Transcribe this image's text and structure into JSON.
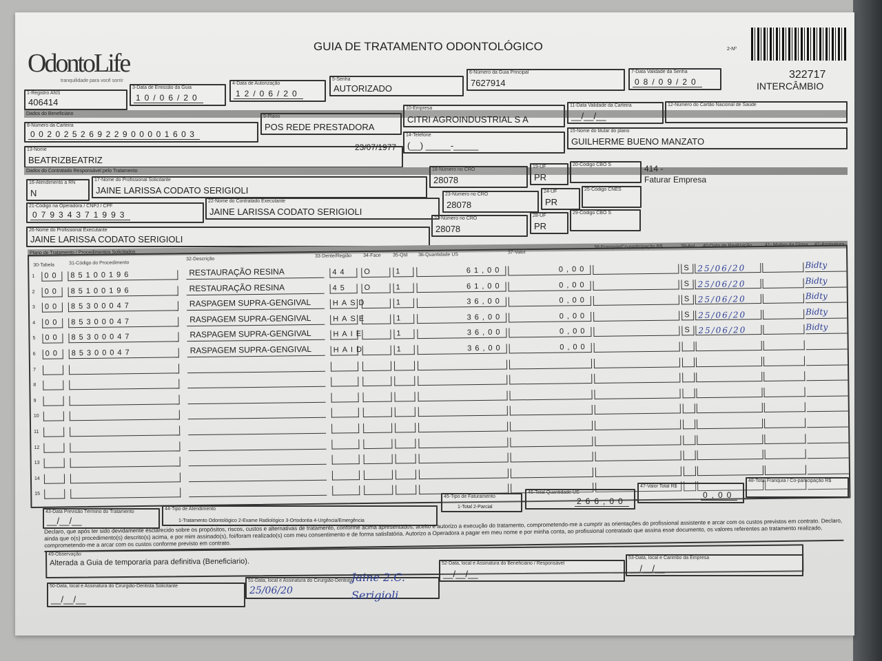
{
  "header": {
    "logo": "OdontoLife",
    "logo_tagline": "tranquilidade para você sorrir",
    "title": "GUIA DE TRATAMENTO ODONTOLÓGICO",
    "guide_number_label": "2-Nº",
    "stamp_number": "322717",
    "stamp_text": "INTERCÂMBIO"
  },
  "fields": {
    "registro_ans": {
      "label": "1-Registro ANS",
      "value": "406414"
    },
    "data_emissao": {
      "label": "3-Data de Emissão da Guia",
      "value": "10/06/20"
    },
    "data_autorizacao": {
      "label": "4-Data de Autorização",
      "value": "12/06/20"
    },
    "senha": {
      "label": "5-Senha",
      "value": "AUTORIZADO"
    },
    "guia_principal": {
      "label": "6-Número da Guia Principal",
      "value": "7627914"
    },
    "validade_senha": {
      "label": "7-Data Validade da Senha",
      "value": "08/09/20"
    },
    "band_beneficiario": "Dados do Beneficiário",
    "carteira": {
      "label": "8-Número da Carteira",
      "value": "00202526922900001603"
    },
    "plano": {
      "label": "9-Plano",
      "value": "POS REDE PRESTADORA"
    },
    "empresa": {
      "label": "10-Empresa",
      "value": "CITRI AGROINDUSTRIAL S A"
    },
    "validade_carteira": {
      "label": "11-Data Validade da Carteira",
      "value": "__/__/__"
    },
    "cns": {
      "label": "12-Número do Cartão Nacional de Saúde",
      "value": ""
    },
    "nome": {
      "label": "13-Nome",
      "value": "BEATRIZBEATRIZ"
    },
    "nascimento": "23/07/1977",
    "telefone": {
      "label": "14-Telefone",
      "value": "(__) _____-_____"
    },
    "titular": {
      "label": "15-Nome do titular do plano",
      "value": "GUILHERME BUENO MANZATO"
    },
    "band_contratado": "Dados do Contratado Responsável pelo Tratamento",
    "atendimento_rn": {
      "label": "16-Atendimento a RN",
      "value": "N"
    },
    "prof_solicitante": {
      "label": "17-Nome do Profissional Solicitante",
      "value": "JAINE LARISSA CODATO SERIGIOLI"
    },
    "cro_18": {
      "label": "18-Número no CRO",
      "value": "28078"
    },
    "uf_19": {
      "label": "19-UF",
      "value": "PR"
    },
    "cbo_20": {
      "label": "20-Código CBO S",
      "value": ""
    },
    "note_414": "414 -",
    "note_faturar": "Faturar Empresa",
    "codigo_operadora": {
      "label": "21-Código na Operadora / CNPJ / CPF",
      "value": "07934371993"
    },
    "contratado_exec": {
      "label": "22-Nome do Contratado Executante",
      "value": "JAINE LARISSA CODATO SERIGIOLI"
    },
    "cro_23": {
      "label": "23-Número no CRO",
      "value": "28078"
    },
    "uf_24": {
      "label": "24-UF",
      "value": "PR"
    },
    "cnes": {
      "label": "25-Código CNES",
      "value": ""
    },
    "prof_exec": {
      "label": "26-Nome do Profissional Executante",
      "value": "JAINE LARISSA CODATO SERIGIOLI"
    },
    "cro_27": {
      "label": "27-Número no CRO",
      "value": "28078"
    },
    "uf_28": {
      "label": "28-UF",
      "value": "PR"
    },
    "cbo_29": {
      "label": "29-Código CBO S",
      "value": ""
    },
    "band_plano": "Plano de Tratamento / Procedimentos Solicitados"
  },
  "table": {
    "columns": [
      "30-Tabela",
      "31-Código do Procedimento",
      "32-Descrição",
      "33-Dente/Região",
      "34-Face",
      "35-Qtd",
      "36-Quantidade US",
      "37-Valor",
      "38-Franquia/Co-participação R$",
      "39-Aut",
      "40-Data de Realização",
      "41- Motivo da Glosa",
      "42-Assinatura"
    ],
    "rows": [
      {
        "n": "1",
        "tabela": "00",
        "codigo": "85100196",
        "descricao": "RESTAURAÇÃO RESINA",
        "dente": "44",
        "face": "O",
        "qtd": "1",
        "us": "61,00",
        "valor": "0,00",
        "aut": "S",
        "data": "25/06/20",
        "assinatura": "Bidty"
      },
      {
        "n": "2",
        "tabela": "00",
        "codigo": "85100196",
        "descricao": "RESTAURAÇÃO RESINA",
        "dente": "45",
        "face": "O",
        "qtd": "1",
        "us": "61,00",
        "valor": "0,00",
        "aut": "S",
        "data": "25/06/20",
        "assinatura": "Bidty"
      },
      {
        "n": "3",
        "tabela": "00",
        "codigo": "85300047",
        "descricao": "RASPAGEM SUPRA-GENGIVAL",
        "dente": "HASD",
        "face": "",
        "qtd": "1",
        "us": "36,00",
        "valor": "0,00",
        "aut": "S",
        "data": "25/06/20",
        "assinatura": "Bidty"
      },
      {
        "n": "4",
        "tabela": "00",
        "codigo": "85300047",
        "descricao": "RASPAGEM SUPRA-GENGIVAL",
        "dente": "HASE",
        "face": "",
        "qtd": "1",
        "us": "36,00",
        "valor": "0,00",
        "aut": "S",
        "data": "25/06/20",
        "assinatura": "Bidty"
      },
      {
        "n": "5",
        "tabela": "00",
        "codigo": "85300047",
        "descricao": "RASPAGEM SUPRA-GENGIVAL",
        "dente": "HAIE",
        "face": "",
        "qtd": "1",
        "us": "36,00",
        "valor": "0,00",
        "aut": "S",
        "data": "25/06/20",
        "assinatura": "Bidty"
      },
      {
        "n": "6",
        "tabela": "00",
        "codigo": "85300047",
        "descricao": "RASPAGEM SUPRA-GENGIVAL",
        "dente": "HAID",
        "face": "",
        "qtd": "1",
        "us": "36,00",
        "valor": "0,00",
        "aut": "",
        "data": "",
        "assinatura": ""
      },
      {
        "n": "7"
      },
      {
        "n": "8"
      },
      {
        "n": "9"
      },
      {
        "n": "10"
      },
      {
        "n": "11"
      },
      {
        "n": "12"
      },
      {
        "n": "13"
      },
      {
        "n": "14"
      },
      {
        "n": "15"
      }
    ]
  },
  "totals": {
    "tipo_faturamento": {
      "label": "45-Tipo de Faturamento",
      "options": "1-Total  2-Parcial"
    },
    "total_us": {
      "label": "46-Total Quantidade US",
      "value": "266,00"
    },
    "valor_total": {
      "label": "47-Valor Total R$",
      "value": "0,00"
    },
    "total_franquia": {
      "label": "48-Total Franquia / Co-participação R$",
      "value": ""
    }
  },
  "footer": {
    "previsao": {
      "label": "43-Data Previsão Término do Tratamento",
      "value": "__/__/__"
    },
    "tipo_atendimento": {
      "label": "44-Tipo de Atendimento",
      "options": "1-Tratamento Odontológico  2-Exame Radiológico  3-Ortodontia  4-Urgência/Emergência"
    },
    "declaracao": "Declaro, que após ter sido devidamente esclarecido sobre os propósitos, riscos, custos e alternativas de tratamento, conforme acima apresentados, aceito e autorizo a execução do tratamento, comprometendo-me a cumprir as orientações do profissional assistente e arcar com os custos previstos em contrato. Declaro, ainda que o(s) procedimento(s) descrito(s) acima, e por mim assinado(s), foi/foram realizado(s) com meu consentimento e de forma satisfatória. Autorizo a Operadora a pagar em meu nome e por minha conta, ao profissional contratado que assina esse documento, os valores referentes ao tratamento realizado, comprometendo-me a arcar com os custos conforme previsto em contrato.",
    "observacao": {
      "label": "49-Observação",
      "value": "Alterada a Guia de temporaria para definitiva (Beneficiario)."
    },
    "assin_solicitante": {
      "label": "50-Data, local e Assinatura do Cirurgião-Dentista Solicitante",
      "value": "__/__/__"
    },
    "assin_dentista": {
      "label": "51-Data, local e Assinatura do Cirurgião-Dentista",
      "date": "25/06/20",
      "signature": "Jaine 2.C. Serigioli"
    },
    "assin_beneficiario": {
      "label": "52-Data, local e Assinatura do Beneficiário / Responsável",
      "value": "__/__/__"
    },
    "carimbo_empresa": {
      "label": "53-Data, local e Carimbo da Empresa",
      "value": "__/__/__"
    }
  }
}
